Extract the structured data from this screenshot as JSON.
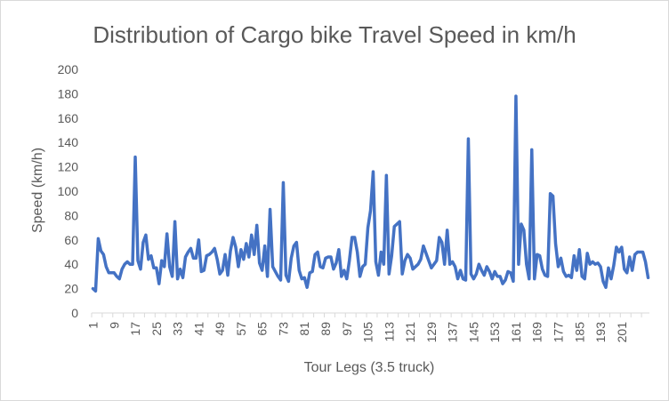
{
  "chart_data": {
    "type": "line",
    "title": "Distribution of Cargo bike Travel Speed  in km/h",
    "xlabel": "Tour Legs (3.5 truck)",
    "ylabel": "Speed (km/h)",
    "ylim": [
      0,
      200
    ],
    "yticks": [
      "0",
      "20",
      "40",
      "60",
      "80",
      "100",
      "120",
      "140",
      "160",
      "180",
      "200"
    ],
    "xticks": [
      "1",
      "9",
      "17",
      "25",
      "33",
      "41",
      "49",
      "57",
      "65",
      "73",
      "81",
      "89",
      "97",
      "105",
      "113",
      "121",
      "129",
      "137",
      "145",
      "153",
      "161",
      "169",
      "177",
      "185",
      "193",
      "201"
    ],
    "grid": false,
    "color": "#4472c4",
    "series": [
      {
        "values": [
          20,
          18,
          61,
          51,
          48,
          38,
          33,
          33,
          33,
          30,
          28,
          36,
          40,
          42,
          40,
          40,
          128,
          43,
          36,
          58,
          64,
          44,
          47,
          37,
          37,
          24,
          43,
          38,
          65,
          38,
          30,
          75,
          28,
          36,
          29,
          46,
          50,
          53,
          45,
          45,
          60,
          34,
          35,
          47,
          48,
          50,
          53,
          44,
          32,
          35,
          48,
          31,
          51,
          62,
          54,
          38,
          52,
          44,
          57,
          46,
          64,
          48,
          72,
          41,
          35,
          55,
          30,
          85,
          38,
          34,
          30,
          27,
          107,
          31,
          26,
          45,
          55,
          58,
          35,
          28,
          29,
          21,
          33,
          34,
          48,
          50,
          38,
          37,
          45,
          46,
          46,
          36,
          41,
          52,
          30,
          35,
          28,
          43,
          62,
          62,
          50,
          30,
          38,
          40,
          70,
          84,
          116,
          42,
          31,
          50,
          40,
          113,
          32,
          47,
          71,
          73,
          75,
          32,
          43,
          48,
          45,
          36,
          38,
          40,
          44,
          55,
          49,
          43,
          37,
          40,
          43,
          62,
          58,
          40,
          68,
          40,
          42,
          38,
          28,
          35,
          28,
          27,
          143,
          32,
          28,
          32,
          40,
          35,
          31,
          38,
          34,
          28,
          34,
          30,
          30,
          24,
          27,
          34,
          33,
          26,
          178,
          40,
          73,
          68,
          40,
          28,
          134,
          28,
          48,
          47,
          36,
          31,
          30,
          98,
          96,
          57,
          38,
          45,
          34,
          30,
          31,
          29,
          47,
          35,
          52,
          30,
          28,
          49,
          40,
          42,
          40,
          41,
          38,
          26,
          21,
          37,
          28,
          39,
          54,
          50,
          54,
          36,
          33,
          46,
          35,
          48,
          50,
          50,
          50,
          42,
          29
        ]
      }
    ]
  }
}
